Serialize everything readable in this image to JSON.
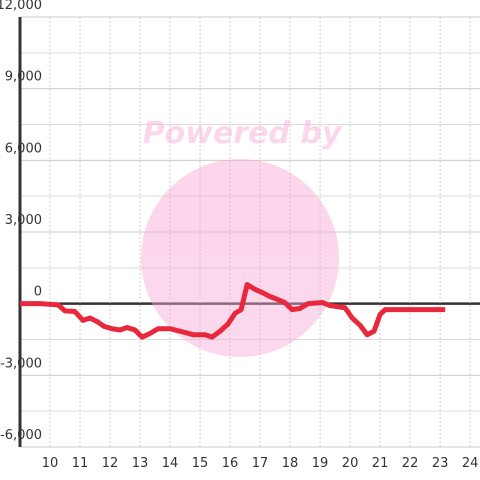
{
  "chart_data": {
    "type": "line",
    "watermark": "Powered by",
    "x": [
      9.0,
      9.67,
      10.27,
      10.5,
      10.83,
      11.1,
      11.33,
      11.57,
      11.8,
      12.07,
      12.33,
      12.57,
      12.83,
      13.07,
      13.33,
      13.6,
      14.0,
      14.33,
      14.77,
      15.17,
      15.4,
      15.67,
      15.93,
      16.17,
      16.37,
      16.57,
      16.83,
      17.1,
      17.33,
      17.6,
      17.83,
      18.07,
      18.33,
      18.6,
      19.07,
      19.33,
      19.83,
      20.07,
      20.33,
      20.57,
      20.8,
      21.0,
      21.17,
      21.67,
      23.17
    ],
    "series": [
      {
        "color": "#e8283c",
        "values": [
          0,
          0,
          -50,
          -300,
          -330,
          -700,
          -600,
          -750,
          -950,
          -1050,
          -1100,
          -1000,
          -1100,
          -1400,
          -1250,
          -1050,
          -1050,
          -1150,
          -1300,
          -1300,
          -1400,
          -1150,
          -850,
          -400,
          -250,
          800,
          600,
          450,
          300,
          170,
          40,
          -250,
          -200,
          0,
          50,
          -80,
          -170,
          -600,
          -900,
          -1300,
          -1150,
          -450,
          -250,
          -250,
          -250
        ]
      }
    ],
    "xlim": [
      9,
      24.33
    ],
    "xticks": [
      10,
      11,
      12,
      13,
      14,
      15,
      16,
      17,
      18,
      19,
      20,
      21,
      22,
      23,
      24
    ],
    "ylim": [
      -6000,
      12000
    ],
    "yticks": [
      {
        "value": -6000,
        "label": "-6,000"
      },
      {
        "value": -3000,
        "label": "-3,000"
      },
      0,
      {
        "value": 3000,
        "label": "3,000"
      },
      {
        "value": 6000,
        "label": "6,000"
      },
      {
        "value": 9000,
        "label": "9,000"
      },
      {
        "value": 12000,
        "label": "12,000"
      }
    ],
    "grid": true
  }
}
